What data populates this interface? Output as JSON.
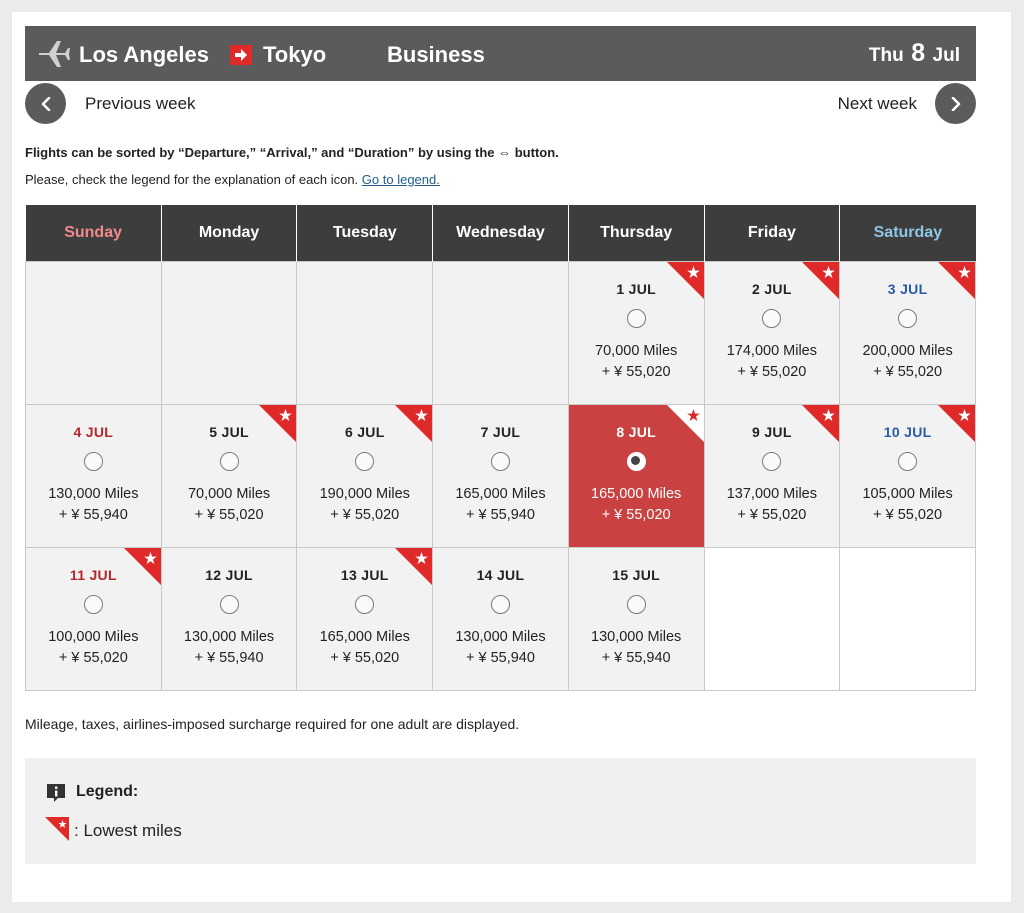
{
  "header": {
    "origin": "Los Angeles",
    "destination": "Tokyo",
    "cabin": "Business",
    "date_weekday": "Thu",
    "date_day": "8",
    "date_month": "Jul"
  },
  "nav": {
    "prev_label": "Previous week",
    "next_label": "Next week"
  },
  "notes": {
    "sort_note": "Flights can be sorted by “Departure,” “Arrival,” and “Duration” by using the ⇔ button.",
    "legend_note": "Please, check the legend for the explanation of each icon.",
    "legend_link": "Go to legend."
  },
  "calendar": {
    "weekdays": [
      "Sunday",
      "Monday",
      "Tuesday",
      "Wednesday",
      "Thursday",
      "Friday",
      "Saturday"
    ],
    "rows": [
      [
        {
          "blank": true
        },
        {
          "blank": true
        },
        {
          "blank": true
        },
        {
          "blank": true
        },
        {
          "date": "1 JUL",
          "miles": "70,000 Miles",
          "tax": "+ ¥ 55,020",
          "lowest": true
        },
        {
          "date": "2 JUL",
          "miles": "174,000 Miles",
          "tax": "+ ¥ 55,020",
          "lowest": true
        },
        {
          "date": "3 JUL",
          "miles": "200,000 Miles",
          "tax": "+ ¥ 55,020",
          "lowest": true
        }
      ],
      [
        {
          "date": "4 JUL",
          "miles": "130,000 Miles",
          "tax": "+ ¥ 55,940",
          "lowest": false
        },
        {
          "date": "5 JUL",
          "miles": "70,000 Miles",
          "tax": "+ ¥ 55,020",
          "lowest": true
        },
        {
          "date": "6 JUL",
          "miles": "190,000 Miles",
          "tax": "+ ¥ 55,020",
          "lowest": true
        },
        {
          "date": "7 JUL",
          "miles": "165,000 Miles",
          "tax": "+ ¥ 55,940",
          "lowest": false
        },
        {
          "date": "8 JUL",
          "miles": "165,000 Miles",
          "tax": "+ ¥ 55,020",
          "lowest": true,
          "selected": true
        },
        {
          "date": "9 JUL",
          "miles": "137,000 Miles",
          "tax": "+ ¥ 55,020",
          "lowest": true
        },
        {
          "date": "10 JUL",
          "miles": "105,000 Miles",
          "tax": "+ ¥ 55,020",
          "lowest": true
        }
      ],
      [
        {
          "date": "11 JUL",
          "miles": "100,000 Miles",
          "tax": "+ ¥ 55,020",
          "lowest": true
        },
        {
          "date": "12 JUL",
          "miles": "130,000 Miles",
          "tax": "+ ¥ 55,940",
          "lowest": false
        },
        {
          "date": "13 JUL",
          "miles": "165,000 Miles",
          "tax": "+ ¥ 55,020",
          "lowest": true
        },
        {
          "date": "14 JUL",
          "miles": "130,000 Miles",
          "tax": "+ ¥ 55,940",
          "lowest": false
        },
        {
          "date": "15 JUL",
          "miles": "130,000 Miles",
          "tax": "+ ¥ 55,940",
          "lowest": false
        },
        {
          "blank": true,
          "white": true
        },
        {
          "blank": true,
          "white": true
        }
      ]
    ]
  },
  "footnote": "Mileage, taxes, airlines-imposed surcharge required for one adult are displayed.",
  "legend": {
    "title": "Legend:",
    "lowest_text": ": Lowest miles"
  },
  "colors": {
    "header_bar": "#5b5b5b",
    "accent_red": "#e02a2a",
    "selected_cell": "#c94141",
    "sunday_date": "#b3262b",
    "saturday_date": "#2b5ba8"
  },
  "icons": {
    "plane": "airplane-icon",
    "route_arrow": "arrow-right-icon",
    "prev": "chevron-left-icon",
    "next": "chevron-right-icon",
    "lowest": "star-ribbon-icon",
    "legend": "info-icon"
  }
}
